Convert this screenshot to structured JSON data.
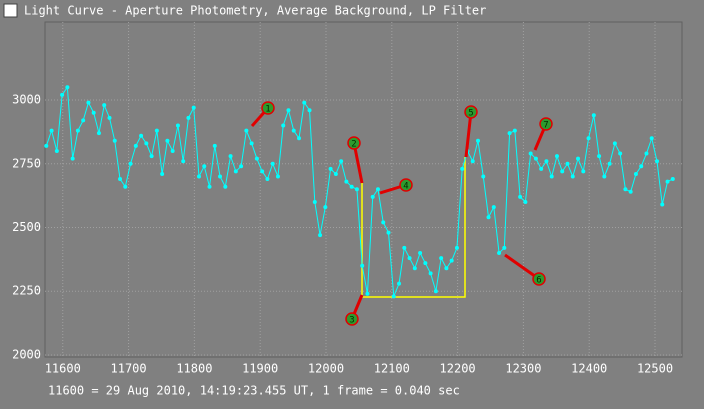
{
  "window_title": "Light Curve - Aperture Photometry, Average Background, LP Filter",
  "chart_data": {
    "type": "line",
    "color": "#00ffff",
    "grid": true,
    "x": [
      11575,
      11583,
      11591,
      11599,
      11607,
      11615,
      11623,
      11631,
      11639,
      11647,
      11655,
      11663,
      11671,
      11679,
      11687,
      11695,
      11703,
      11711,
      11719,
      11727,
      11735,
      11743,
      11751,
      11759,
      11767,
      11775,
      11783,
      11791,
      11799,
      11807,
      11815,
      11823,
      11831,
      11839,
      11847,
      11855,
      11863,
      11871,
      11879,
      11887,
      11895,
      11903,
      11911,
      11919,
      11927,
      11935,
      11943,
      11951,
      11959,
      11967,
      11975,
      11983,
      11991,
      11999,
      12007,
      12015,
      12023,
      12031,
      12039,
      12047,
      12055,
      12063,
      12071,
      12079,
      12087,
      12095,
      12103,
      12111,
      12119,
      12127,
      12135,
      12143,
      12151,
      12159,
      12167,
      12175,
      12183,
      12191,
      12199,
      12207,
      12215,
      12223,
      12231,
      12239,
      12247,
      12255,
      12263,
      12271,
      12279,
      12287,
      12295,
      12303,
      12311,
      12319,
      12327,
      12335,
      12343,
      12351,
      12359,
      12367,
      12375,
      12383,
      12391,
      12399,
      12407,
      12415,
      12423,
      12431,
      12439,
      12447,
      12455,
      12463,
      12471,
      12479,
      12487,
      12495,
      12503,
      12511,
      12519,
      12527
    ],
    "values": [
      2820,
      2880,
      2800,
      3020,
      3050,
      2770,
      2880,
      2920,
      2990,
      2950,
      2870,
      2980,
      2930,
      2840,
      2690,
      2660,
      2750,
      2820,
      2860,
      2830,
      2780,
      2880,
      2710,
      2840,
      2800,
      2900,
      2760,
      2930,
      2970,
      2700,
      2740,
      2660,
      2820,
      2700,
      2660,
      2780,
      2720,
      2740,
      2880,
      2830,
      2770,
      2720,
      2690,
      2750,
      2700,
      2900,
      2960,
      2880,
      2850,
      2990,
      2960,
      2600,
      2470,
      2580,
      2730,
      2710,
      2760,
      2680,
      2660,
      2650,
      2350,
      2240,
      2620,
      2650,
      2520,
      2480,
      2230,
      2280,
      2420,
      2380,
      2340,
      2400,
      2360,
      2320,
      2250,
      2380,
      2340,
      2370,
      2420,
      2730,
      2800,
      2760,
      2840,
      2700,
      2540,
      2580,
      2400,
      2420,
      2870,
      2880,
      2620,
      2600,
      2790,
      2770,
      2730,
      2760,
      2700,
      2780,
      2720,
      2750,
      2700,
      2770,
      2720,
      2850,
      2940,
      2780,
      2700,
      2750,
      2830,
      2790,
      2650,
      2640,
      2710,
      2740,
      2790,
      2850,
      2760,
      2590,
      2680,
      2690
    ],
    "xlim": [
      11573,
      12541
    ],
    "ylim": [
      1992,
      3306
    ],
    "xticks": [
      11600,
      11700,
      11800,
      11900,
      12000,
      12100,
      12200,
      12300,
      12400,
      12500
    ],
    "yticks": [
      2000,
      2250,
      2500,
      2750,
      3000
    ],
    "annotations": [
      "1",
      "2",
      "3",
      "4",
      "5",
      "6",
      "7"
    ]
  },
  "footer": "11600 = 29 Aug 2010, 14:19:23.455 UT, 1 frame = 0.040 sec"
}
